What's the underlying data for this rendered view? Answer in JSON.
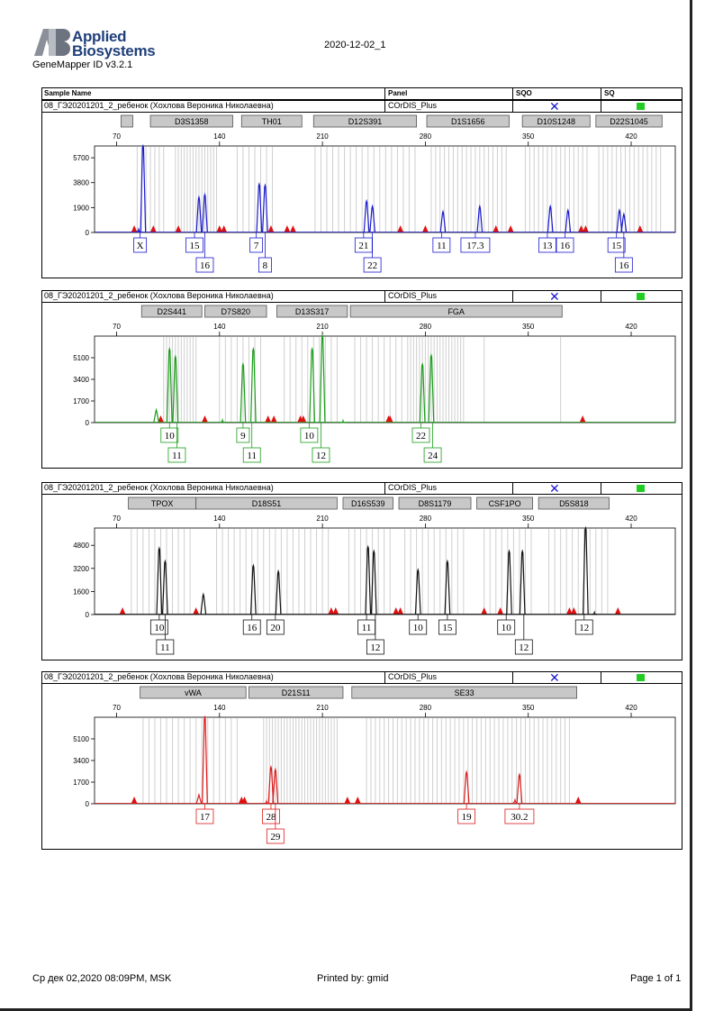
{
  "header": {
    "brand_line1": "Applied",
    "brand_line2": "Biosystems",
    "software": "GeneMapper ID v3.2.1",
    "title": "2020-12-02_1"
  },
  "columns": {
    "sample_name": "Sample Name",
    "panel": "Panel",
    "sqo": "SQO",
    "sq": "SQ"
  },
  "footer": {
    "date": "Ср дек 02,2020 08:09PM, MSK",
    "printed_by": "Printed by: gmid",
    "page": "Page 1 of 1"
  },
  "chart_data": [
    {
      "type": "electropherogram",
      "sample_name": "08_ГЭ20201201_2_ребенок (Хохлова Вероника Николаевна)",
      "panel": "COrDIS_Plus",
      "sqo": "✕",
      "sq_color": "#22cc22",
      "dye_color": "#1a1acd",
      "x_ticks": [
        70,
        140,
        210,
        280,
        350,
        420
      ],
      "y_ticks": [
        0,
        1900,
        3800,
        5700
      ],
      "ylim": [
        0,
        6600
      ],
      "loci": [
        {
          "name": "",
          "start": 73,
          "end": 81
        },
        {
          "name": "D3S1358",
          "start": 93,
          "end": 149
        },
        {
          "name": "TH01",
          "start": 155,
          "end": 196
        },
        {
          "name": "D12S391",
          "start": 204,
          "end": 274
        },
        {
          "name": "D1S1656",
          "start": 281,
          "end": 337
        },
        {
          "name": "D10S1248",
          "start": 346,
          "end": 392
        },
        {
          "name": "D22S1045",
          "start": 396,
          "end": 441
        }
      ],
      "peaks": [
        {
          "x": 88,
          "h": 6600
        },
        {
          "x": 85,
          "h": 250
        },
        {
          "x": 126,
          "h": 2700
        },
        {
          "x": 130,
          "h": 2900
        },
        {
          "x": 167,
          "h": 3700
        },
        {
          "x": 171,
          "h": 3600
        },
        {
          "x": 240,
          "h": 2400
        },
        {
          "x": 244,
          "h": 2000
        },
        {
          "x": 292,
          "h": 1600
        },
        {
          "x": 317,
          "h": 2000
        },
        {
          "x": 365,
          "h": 2000
        },
        {
          "x": 377,
          "h": 1700
        },
        {
          "x": 412,
          "h": 1700
        },
        {
          "x": 415,
          "h": 1400
        }
      ],
      "standard_peaks": [
        82,
        95,
        112,
        140,
        143,
        175,
        186,
        190,
        263,
        280,
        328,
        338,
        386,
        389,
        426
      ],
      "alleles": [
        {
          "label": "X",
          "x": 86,
          "row": 0
        },
        {
          "label": "15",
          "x": 123,
          "row": 0
        },
        {
          "label": "16",
          "x": 130,
          "row": 1
        },
        {
          "label": "7",
          "x": 165,
          "row": 0
        },
        {
          "label": "8",
          "x": 171,
          "row": 1
        },
        {
          "label": "21",
          "x": 238,
          "row": 0
        },
        {
          "label": "22",
          "x": 244,
          "row": 1
        },
        {
          "label": "11",
          "x": 291,
          "row": 0
        },
        {
          "label": "17.3",
          "x": 314,
          "row": 0
        },
        {
          "label": "13",
          "x": 363,
          "row": 0
        },
        {
          "label": "16",
          "x": 375,
          "row": 0
        },
        {
          "label": "15",
          "x": 410,
          "row": 0
        },
        {
          "label": "16",
          "x": 415,
          "row": 1
        }
      ],
      "bins": [
        84,
        87,
        90,
        93,
        96,
        99,
        102,
        110,
        112,
        114,
        116,
        118,
        120,
        122,
        124,
        126,
        128,
        130,
        132,
        134,
        136,
        138,
        152,
        156,
        160,
        164,
        168,
        172,
        176,
        205,
        209,
        213,
        217,
        221,
        225,
        229,
        233,
        237,
        241,
        245,
        249,
        253,
        257,
        261,
        265,
        269,
        273,
        284,
        287,
        290,
        293,
        296,
        299,
        302,
        305,
        308,
        311,
        314,
        317,
        320,
        323,
        326,
        329,
        332,
        335,
        348,
        351,
        354,
        357,
        360,
        363,
        366,
        369,
        372,
        375,
        378,
        381,
        384,
        387,
        390,
        398,
        401,
        404,
        407,
        410,
        413,
        416,
        419,
        422,
        425,
        428,
        431,
        434,
        437,
        440
      ]
    },
    {
      "type": "electropherogram",
      "sample_name": "08_ГЭ20201201_2_ребенок (Хохлова Вероника Николаевна)",
      "panel": "COrDIS_Plus",
      "sqo": "✕",
      "sq_color": "#22cc22",
      "dye_color": "#1a9d1a",
      "x_ticks": [
        70,
        140,
        210,
        280,
        350,
        420
      ],
      "y_ticks": [
        0,
        1700,
        3400,
        5100
      ],
      "ylim": [
        0,
        6800
      ],
      "loci": [
        {
          "name": "D2S441",
          "start": 87,
          "end": 128
        },
        {
          "name": "D7S820",
          "start": 130,
          "end": 172
        },
        {
          "name": "D13S317",
          "start": 179,
          "end": 227
        },
        {
          "name": "FGA",
          "start": 229,
          "end": 373
        }
      ],
      "peaks": [
        {
          "x": 106,
          "h": 5800
        },
        {
          "x": 110,
          "h": 5200
        },
        {
          "x": 97,
          "h": 1000
        },
        {
          "x": 156,
          "h": 4600
        },
        {
          "x": 163,
          "h": 5800
        },
        {
          "x": 203,
          "h": 5800
        },
        {
          "x": 210,
          "h": 6800
        },
        {
          "x": 278,
          "h": 4600
        },
        {
          "x": 284,
          "h": 5300
        },
        {
          "x": 142,
          "h": 200
        },
        {
          "x": 224,
          "h": 150
        }
      ],
      "standard_peaks": [
        100,
        130,
        173,
        177,
        195,
        197,
        255,
        256,
        387
      ],
      "alleles": [
        {
          "label": "10",
          "x": 106,
          "row": 0
        },
        {
          "label": "11",
          "x": 111,
          "row": 1
        },
        {
          "label": "9",
          "x": 156,
          "row": 0
        },
        {
          "label": "11",
          "x": 162,
          "row": 1
        },
        {
          "label": "10",
          "x": 201,
          "row": 0
        },
        {
          "label": "12",
          "x": 209,
          "row": 1
        },
        {
          "label": "22",
          "x": 277,
          "row": 0
        },
        {
          "label": "24",
          "x": 285,
          "row": 1
        }
      ],
      "bins": [
        102,
        104,
        106,
        108,
        110,
        112,
        114,
        116,
        118,
        120,
        122,
        124,
        140,
        144,
        148,
        152,
        156,
        160,
        164,
        168,
        184,
        188,
        192,
        196,
        200,
        204,
        208,
        212,
        216,
        220,
        232,
        236,
        240,
        244,
        248,
        252,
        256,
        260,
        264,
        268,
        270,
        272,
        274,
        276,
        278,
        280,
        282,
        284,
        286,
        288,
        290,
        292,
        294,
        296,
        298,
        300,
        302,
        304,
        306,
        320,
        372
      ]
    },
    {
      "type": "electropherogram",
      "sample_name": "08_ГЭ20201201_2_ребенок (Хохлова Вероника Николаевна)",
      "panel": "COrDIS_Plus",
      "sqo": "✕",
      "sq_color": "#22cc22",
      "dye_color": "#111111",
      "x_ticks": [
        70,
        140,
        210,
        280,
        350,
        420
      ],
      "y_ticks": [
        0,
        1600,
        3200,
        4800
      ],
      "ylim": [
        0,
        6000
      ],
      "loci": [
        {
          "name": "TPOX",
          "start": 78,
          "end": 124
        },
        {
          "name": "D18S51",
          "start": 124,
          "end": 220
        },
        {
          "name": "D16S539",
          "start": 224,
          "end": 258
        },
        {
          "name": "D8S1179",
          "start": 262,
          "end": 311
        },
        {
          "name": "CSF1PO",
          "start": 315,
          "end": 353
        },
        {
          "name": "D5S818",
          "start": 357,
          "end": 405
        }
      ],
      "peaks": [
        {
          "x": 99,
          "h": 4600
        },
        {
          "x": 103,
          "h": 3700
        },
        {
          "x": 129,
          "h": 1400
        },
        {
          "x": 163,
          "h": 3400
        },
        {
          "x": 180,
          "h": 3000
        },
        {
          "x": 241,
          "h": 4700
        },
        {
          "x": 245,
          "h": 4400
        },
        {
          "x": 275,
          "h": 3100
        },
        {
          "x": 295,
          "h": 3700
        },
        {
          "x": 337,
          "h": 4400
        },
        {
          "x": 346,
          "h": 4400
        },
        {
          "x": 389,
          "h": 6000
        },
        {
          "x": 395,
          "h": 150
        }
      ],
      "standard_peaks": [
        74,
        124,
        216,
        219,
        260,
        263,
        320,
        331,
        378,
        381,
        411
      ],
      "alleles": [
        {
          "label": "10",
          "x": 99,
          "row": 0
        },
        {
          "label": "11",
          "x": 103,
          "row": 1
        },
        {
          "label": "16",
          "x": 162,
          "row": 0
        },
        {
          "label": "20",
          "x": 178,
          "row": 0
        },
        {
          "label": "11",
          "x": 240,
          "row": 0
        },
        {
          "label": "12",
          "x": 246,
          "row": 1
        },
        {
          "label": "10",
          "x": 275,
          "row": 0
        },
        {
          "label": "15",
          "x": 295,
          "row": 0
        },
        {
          "label": "10",
          "x": 335,
          "row": 0
        },
        {
          "label": "12",
          "x": 347,
          "row": 1
        },
        {
          "label": "12",
          "x": 388,
          "row": 0
        }
      ],
      "bins": [
        80,
        84,
        88,
        92,
        96,
        100,
        104,
        108,
        112,
        116,
        120,
        138,
        142,
        146,
        150,
        154,
        158,
        162,
        166,
        170,
        174,
        178,
        182,
        186,
        190,
        194,
        198,
        202,
        206,
        210,
        214,
        228,
        232,
        236,
        240,
        244,
        248,
        252,
        256,
        266,
        270,
        274,
        278,
        282,
        286,
        290,
        294,
        298,
        302,
        306,
        320,
        324,
        328,
        332,
        336,
        340,
        344,
        348,
        352,
        364,
        368,
        372,
        376,
        380,
        384,
        388,
        392,
        396,
        400,
        404
      ]
    },
    {
      "type": "electropherogram",
      "sample_name": "08_ГЭ20201201_2_ребенок (Хохлова Вероника Николаевна)",
      "panel": "COrDIS_Plus",
      "sqo": "✕",
      "sq_color": "#22cc22",
      "dye_color": "#dd1a1a",
      "x_ticks": [
        70,
        140,
        210,
        280,
        350,
        420
      ],
      "y_ticks": [
        0,
        1700,
        3400,
        5100
      ],
      "ylim": [
        0,
        6800
      ],
      "loci": [
        {
          "name": "vWA",
          "start": 86,
          "end": 158
        },
        {
          "name": "D21S11",
          "start": 160,
          "end": 224
        },
        {
          "name": "SE33",
          "start": 230,
          "end": 383
        }
      ],
      "peaks": [
        {
          "x": 130,
          "h": 6800
        },
        {
          "x": 126,
          "h": 700
        },
        {
          "x": 175,
          "h": 2900
        },
        {
          "x": 178,
          "h": 2700
        },
        {
          "x": 172,
          "h": 200
        },
        {
          "x": 308,
          "h": 2500
        },
        {
          "x": 344,
          "h": 2300
        },
        {
          "x": 341,
          "h": 300
        }
      ],
      "standard_peaks": [
        82,
        155,
        157,
        227,
        234,
        384
      ],
      "alleles": [
        {
          "label": "17",
          "x": 130,
          "row": 0
        },
        {
          "label": "28",
          "x": 175,
          "row": 0
        },
        {
          "label": "29",
          "x": 178,
          "row": 1
        },
        {
          "label": "19",
          "x": 308,
          "row": 0
        },
        {
          "label": "30.2",
          "x": 344,
          "row": 0
        }
      ],
      "bins": [
        88,
        92,
        96,
        100,
        104,
        108,
        112,
        116,
        120,
        124,
        128,
        132,
        136,
        140,
        144,
        148,
        152,
        170,
        172,
        174,
        176,
        178,
        180,
        182,
        184,
        186,
        188,
        190,
        192,
        194,
        196,
        198,
        200,
        202,
        204,
        206,
        208,
        210,
        212,
        214,
        216,
        218,
        220,
        240,
        243,
        246,
        249,
        252,
        255,
        258,
        261,
        264,
        267,
        270,
        273,
        276,
        279,
        282,
        285,
        288,
        291,
        294,
        297,
        300,
        303,
        306,
        309,
        312,
        315,
        318,
        321,
        324,
        327,
        330,
        333,
        336,
        339,
        342,
        345,
        348,
        351,
        354,
        357,
        360,
        363,
        366,
        369,
        372,
        375,
        378
      ]
    }
  ]
}
